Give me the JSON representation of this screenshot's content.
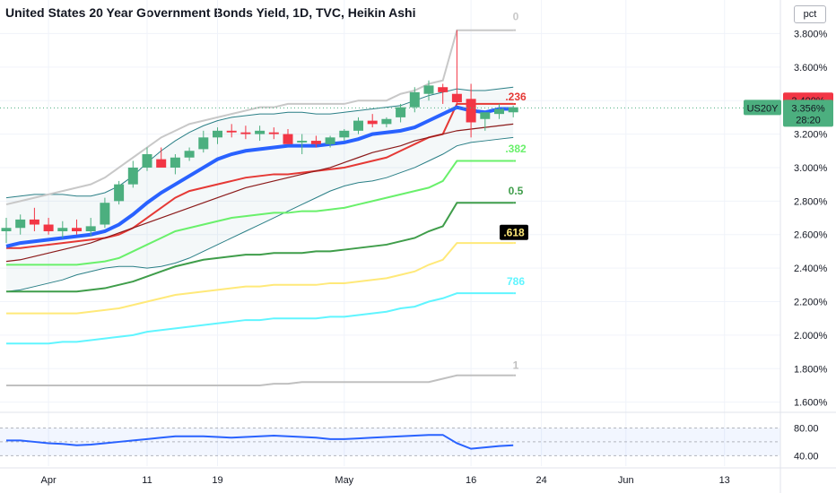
{
  "title": "United States 20 Year Government Bonds Yield, 1D, TVC, Heikin Ashi",
  "scale_unit": "pct",
  "symbol": "US20Y",
  "last_price": "3.356%",
  "countdown": "28:20",
  "marker_price": "3.400%",
  "colors": {
    "up": "#4caf7f",
    "down": "#f23645",
    "ema": "#2962ff",
    "ema_long": "#8b1a1a",
    "envelope": "#2a7f86",
    "fib0": "#c8c8c8",
    "fib236": "#e53935",
    "fib382": "#69f06b",
    "fib5": "#3f9d4a",
    "fib618": "#ffe979",
    "fib786": "#60f5ff",
    "fib1": "#c0c0c0",
    "rsi": "#2962ff",
    "grid": "#f0f3fa"
  },
  "chart_data": {
    "type": "candlestick",
    "title": "United States 20 Year Government Bonds Yield, 1D, TVC, Heikin Ashi",
    "y_range": [
      1.55,
      3.92
    ],
    "y_ticks": [
      "3.800%",
      "3.600%",
      "3.400%",
      "3.200%",
      "3.000%",
      "2.800%",
      "2.600%",
      "2.400%",
      "2.200%",
      "2.000%",
      "1.800%",
      "1.600%"
    ],
    "y_tick_values": [
      3.8,
      3.6,
      3.4,
      3.2,
      3.0,
      2.8,
      2.6,
      2.4,
      2.2,
      2.0,
      1.8,
      1.6
    ],
    "x_ticks": [
      "Apr",
      "11",
      "19",
      "May",
      "16",
      "24",
      "Jun",
      "13"
    ],
    "x_tick_index": [
      3,
      10,
      15,
      24,
      33,
      38,
      44,
      51
    ],
    "candles": [
      {
        "o": 2.62,
        "h": 2.7,
        "l": 2.55,
        "c": 2.64
      },
      {
        "o": 2.64,
        "h": 2.72,
        "l": 2.6,
        "c": 2.69
      },
      {
        "o": 2.69,
        "h": 2.76,
        "l": 2.62,
        "c": 2.66
      },
      {
        "o": 2.66,
        "h": 2.7,
        "l": 2.6,
        "c": 2.62
      },
      {
        "o": 2.62,
        "h": 2.68,
        "l": 2.58,
        "c": 2.64
      },
      {
        "o": 2.64,
        "h": 2.69,
        "l": 2.6,
        "c": 2.62
      },
      {
        "o": 2.62,
        "h": 2.7,
        "l": 2.59,
        "c": 2.65
      },
      {
        "o": 2.66,
        "h": 2.82,
        "l": 2.64,
        "c": 2.79
      },
      {
        "o": 2.8,
        "h": 2.92,
        "l": 2.78,
        "c": 2.9
      },
      {
        "o": 2.9,
        "h": 3.04,
        "l": 2.88,
        "c": 3.0
      },
      {
        "o": 3.0,
        "h": 3.12,
        "l": 2.98,
        "c": 3.08
      },
      {
        "o": 3.05,
        "h": 3.12,
        "l": 3.02,
        "c": 3.0
      },
      {
        "o": 3.0,
        "h": 3.08,
        "l": 2.96,
        "c": 3.06
      },
      {
        "o": 3.06,
        "h": 3.12,
        "l": 3.04,
        "c": 3.1
      },
      {
        "o": 3.11,
        "h": 3.22,
        "l": 3.09,
        "c": 3.18
      },
      {
        "o": 3.18,
        "h": 3.24,
        "l": 3.14,
        "c": 3.22
      },
      {
        "o": 3.22,
        "h": 3.26,
        "l": 3.18,
        "c": 3.21
      },
      {
        "o": 3.21,
        "h": 3.25,
        "l": 3.17,
        "c": 3.2
      },
      {
        "o": 3.2,
        "h": 3.25,
        "l": 3.16,
        "c": 3.22
      },
      {
        "o": 3.21,
        "h": 3.24,
        "l": 3.17,
        "c": 3.2
      },
      {
        "o": 3.2,
        "h": 3.23,
        "l": 3.15,
        "c": 3.14
      },
      {
        "o": 3.15,
        "h": 3.2,
        "l": 3.08,
        "c": 3.16
      },
      {
        "o": 3.16,
        "h": 3.19,
        "l": 3.12,
        "c": 3.14
      },
      {
        "o": 3.14,
        "h": 3.19,
        "l": 3.12,
        "c": 3.18
      },
      {
        "o": 3.18,
        "h": 3.23,
        "l": 3.16,
        "c": 3.22
      },
      {
        "o": 3.22,
        "h": 3.3,
        "l": 3.2,
        "c": 3.28
      },
      {
        "o": 3.28,
        "h": 3.32,
        "l": 3.24,
        "c": 3.26
      },
      {
        "o": 3.26,
        "h": 3.3,
        "l": 3.24,
        "c": 3.29
      },
      {
        "o": 3.3,
        "h": 3.38,
        "l": 3.27,
        "c": 3.36
      },
      {
        "o": 3.36,
        "h": 3.48,
        "l": 3.33,
        "c": 3.45
      },
      {
        "o": 3.44,
        "h": 3.52,
        "l": 3.4,
        "c": 3.49
      },
      {
        "o": 3.48,
        "h": 3.5,
        "l": 3.38,
        "c": 3.45
      },
      {
        "o": 3.44,
        "h": 3.82,
        "l": 3.38,
        "c": 3.39
      },
      {
        "o": 3.41,
        "h": 3.5,
        "l": 3.18,
        "c": 3.27
      },
      {
        "o": 3.29,
        "h": 3.33,
        "l": 3.22,
        "c": 3.33
      },
      {
        "o": 3.32,
        "h": 3.38,
        "l": 3.29,
        "c": 3.35
      },
      {
        "o": 3.33,
        "h": 3.37,
        "l": 3.3,
        "c": 3.36
      }
    ],
    "ema": [
      2.53,
      2.55,
      2.56,
      2.57,
      2.58,
      2.59,
      2.6,
      2.62,
      2.66,
      2.72,
      2.79,
      2.85,
      2.9,
      2.95,
      3.0,
      3.05,
      3.08,
      3.1,
      3.11,
      3.12,
      3.13,
      3.13,
      3.13,
      3.14,
      3.15,
      3.17,
      3.2,
      3.21,
      3.22,
      3.24,
      3.28,
      3.32,
      3.36,
      3.34,
      3.33,
      3.35,
      3.35
    ],
    "ema_long": [
      2.44,
      2.45,
      2.47,
      2.49,
      2.51,
      2.53,
      2.55,
      2.58,
      2.61,
      2.64,
      2.67,
      2.7,
      2.73,
      2.76,
      2.79,
      2.82,
      2.85,
      2.88,
      2.9,
      2.92,
      2.94,
      2.96,
      2.98,
      3.0,
      3.03,
      3.06,
      3.09,
      3.11,
      3.13,
      3.16,
      3.18,
      3.2,
      3.22,
      3.23,
      3.24,
      3.25,
      3.26
    ],
    "upper_band": [
      2.82,
      2.83,
      2.84,
      2.84,
      2.84,
      2.83,
      2.83,
      2.85,
      2.89,
      2.95,
      3.03,
      3.1,
      3.16,
      3.21,
      3.25,
      3.28,
      3.3,
      3.31,
      3.32,
      3.32,
      3.33,
      3.33,
      3.32,
      3.32,
      3.33,
      3.34,
      3.35,
      3.36,
      3.37,
      3.4,
      3.43,
      3.45,
      3.47,
      3.46,
      3.46,
      3.47,
      3.48
    ],
    "lower_band": [
      2.26,
      2.27,
      2.29,
      2.31,
      2.33,
      2.36,
      2.38,
      2.4,
      2.41,
      2.41,
      2.4,
      2.41,
      2.43,
      2.46,
      2.5,
      2.54,
      2.58,
      2.62,
      2.66,
      2.7,
      2.74,
      2.78,
      2.82,
      2.86,
      2.89,
      2.91,
      2.92,
      2.94,
      2.97,
      3.0,
      3.04,
      3.08,
      3.13,
      3.15,
      3.16,
      3.17,
      3.18
    ],
    "fib_levels": [
      {
        "label": "0",
        "color": "#c8c8c8",
        "values": [
          2.78,
          2.8,
          2.82,
          2.84,
          2.86,
          2.88,
          2.9,
          2.94,
          3.0,
          3.06,
          3.12,
          3.18,
          3.22,
          3.26,
          3.28,
          3.3,
          3.32,
          3.34,
          3.36,
          3.36,
          3.38,
          3.38,
          3.38,
          3.38,
          3.38,
          3.4,
          3.4,
          3.4,
          3.44,
          3.46,
          3.5,
          3.52,
          3.82,
          3.82,
          3.82,
          3.82,
          3.82
        ]
      },
      {
        "label": ".236",
        "color": "#e53935",
        "values": [
          2.52,
          2.52,
          2.53,
          2.54,
          2.55,
          2.56,
          2.57,
          2.58,
          2.6,
          2.64,
          2.7,
          2.76,
          2.82,
          2.86,
          2.88,
          2.9,
          2.92,
          2.94,
          2.95,
          2.96,
          2.96,
          2.97,
          2.98,
          2.99,
          3.0,
          3.02,
          3.04,
          3.06,
          3.1,
          3.14,
          3.18,
          3.2,
          3.38,
          3.38,
          3.38,
          3.38,
          3.38
        ]
      },
      {
        "label": ".382",
        "color": "#69f06b",
        "values": [
          2.42,
          2.42,
          2.42,
          2.42,
          2.42,
          2.42,
          2.43,
          2.44,
          2.46,
          2.5,
          2.54,
          2.58,
          2.62,
          2.64,
          2.66,
          2.68,
          2.7,
          2.71,
          2.72,
          2.73,
          2.73,
          2.74,
          2.74,
          2.75,
          2.76,
          2.78,
          2.8,
          2.82,
          2.84,
          2.86,
          2.88,
          2.92,
          3.04,
          3.04,
          3.04,
          3.04,
          3.04
        ]
      },
      {
        "label": "0.5",
        "color": "#3f9d4a",
        "values": [
          2.26,
          2.26,
          2.26,
          2.26,
          2.26,
          2.26,
          2.27,
          2.28,
          2.3,
          2.32,
          2.35,
          2.38,
          2.41,
          2.43,
          2.45,
          2.46,
          2.47,
          2.48,
          2.48,
          2.49,
          2.49,
          2.49,
          2.5,
          2.5,
          2.51,
          2.52,
          2.53,
          2.54,
          2.56,
          2.58,
          2.62,
          2.65,
          2.79,
          2.79,
          2.79,
          2.79,
          2.79
        ]
      },
      {
        "label": ".618",
        "color": "#ffe979",
        "values": [
          2.13,
          2.13,
          2.13,
          2.13,
          2.13,
          2.13,
          2.14,
          2.15,
          2.16,
          2.18,
          2.2,
          2.22,
          2.24,
          2.25,
          2.26,
          2.27,
          2.28,
          2.29,
          2.29,
          2.3,
          2.3,
          2.3,
          2.3,
          2.31,
          2.31,
          2.32,
          2.33,
          2.34,
          2.36,
          2.38,
          2.42,
          2.45,
          2.55,
          2.55,
          2.55,
          2.55,
          2.55
        ]
      },
      {
        "label": "786",
        "color": "#60f5ff",
        "values": [
          1.95,
          1.95,
          1.95,
          1.95,
          1.96,
          1.96,
          1.97,
          1.98,
          1.99,
          2.0,
          2.02,
          2.03,
          2.04,
          2.05,
          2.06,
          2.07,
          2.08,
          2.09,
          2.09,
          2.1,
          2.1,
          2.1,
          2.1,
          2.11,
          2.11,
          2.12,
          2.13,
          2.14,
          2.16,
          2.17,
          2.2,
          2.22,
          2.25,
          2.25,
          2.25,
          2.25,
          2.25
        ]
      },
      {
        "label": "1",
        "color": "#c0c0c0",
        "values": [
          1.7,
          1.7,
          1.7,
          1.7,
          1.7,
          1.7,
          1.7,
          1.7,
          1.7,
          1.7,
          1.7,
          1.7,
          1.7,
          1.7,
          1.7,
          1.7,
          1.7,
          1.7,
          1.7,
          1.71,
          1.71,
          1.72,
          1.72,
          1.72,
          1.72,
          1.72,
          1.72,
          1.72,
          1.72,
          1.72,
          1.72,
          1.74,
          1.76,
          1.76,
          1.76,
          1.76,
          1.76
        ]
      }
    ],
    "rsi": {
      "y_ticks": [
        "80.00",
        "40.00"
      ],
      "y_tick_values": [
        80,
        40
      ],
      "y_range": [
        25,
        100
      ],
      "values": [
        62,
        62,
        60,
        58,
        57,
        55,
        56,
        58,
        60,
        62,
        64,
        66,
        68,
        68,
        68,
        67,
        66,
        67,
        68,
        69,
        68,
        67,
        66,
        64,
        64,
        65,
        66,
        67,
        68,
        69,
        70,
        70,
        58,
        50,
        52,
        54,
        55
      ]
    }
  }
}
